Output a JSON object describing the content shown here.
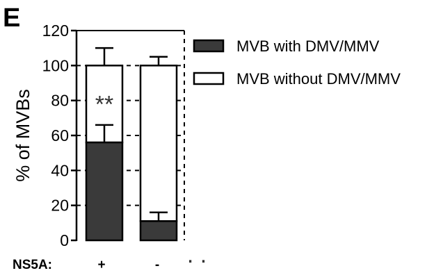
{
  "panel_label": "E",
  "chart_data": {
    "type": "bar",
    "stacked": true,
    "ylabel": "% of MVBs",
    "ylim": [
      0,
      120
    ],
    "yticks": [
      0,
      20,
      40,
      60,
      80,
      100,
      120
    ],
    "grid": false,
    "legend_position": "right",
    "condition_label": "NS5A:",
    "categories": [
      "+",
      "-"
    ],
    "series": [
      {
        "name": "MVB with DMV/MMV",
        "color": "#3a3a3a",
        "values": [
          56,
          11
        ],
        "errors": [
          10,
          5
        ]
      },
      {
        "name": "MVB without DMV/MMV",
        "color": "#ffffff",
        "values": [
          44,
          89
        ],
        "errors": [
          10,
          5
        ]
      }
    ],
    "annotations": [
      {
        "category": "+",
        "text": "**",
        "y": 78
      }
    ],
    "extra_marks": ". ."
  }
}
